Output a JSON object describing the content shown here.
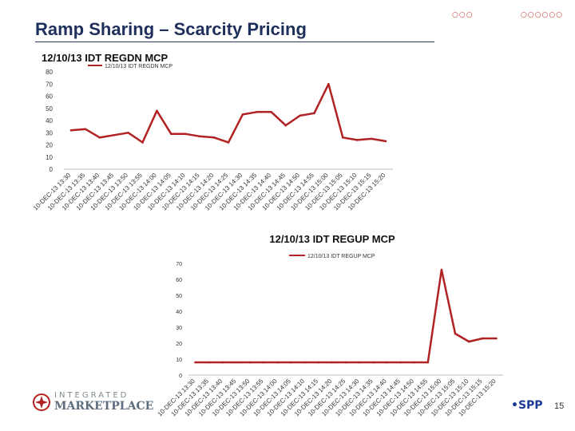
{
  "slide": {
    "title": "Ramp Sharing – Scarcity Pricing",
    "page_number": "15",
    "logo_upper": "INTEGRATED",
    "logo_lower": "MARKETPLACE",
    "spp_logo": "•SPP",
    "accent_color": "#b22222",
    "title_color": "#1f2f5c"
  },
  "chart_data": [
    {
      "type": "line",
      "title": "12/10/13 IDT REGDN MCP",
      "legend": "12/10/13 IDT REGDN MCP",
      "legend_position": "top-left",
      "color": "#b22222",
      "ylim": [
        0,
        80
      ],
      "yticks": [
        0,
        10,
        20,
        30,
        40,
        50,
        60,
        70,
        80
      ],
      "categories": [
        "10-DEC-13 13:30",
        "10-DEC-13 13:35",
        "10-DEC-13 13:40",
        "10-DEC-13 13:45",
        "10-DEC-13 13:50",
        "10-DEC-13 13:55",
        "10-DEC-13 14:00",
        "10-DEC-13 14:05",
        "10-DEC-13 14:10",
        "10-DEC-13 14:15",
        "10-DEC-13 14:20",
        "10-DEC-13 14:25",
        "10-DEC-13 14:30",
        "10-DEC-13 14:35",
        "10-DEC-13 14:40",
        "10-DEC-13 14:45",
        "10-DEC-13 14:50",
        "10-DEC-13 14:55",
        "10-DEC-13 15:00",
        "10-DEC-13 15:05",
        "10-DEC-13 15:10",
        "10-DEC-13 15:15",
        "10-DEC-13 15:20"
      ],
      "values": [
        32,
        33,
        26,
        28,
        30,
        22,
        48,
        29,
        29,
        27,
        26,
        22,
        45,
        47,
        47,
        36,
        44,
        46,
        70,
        26,
        24,
        25,
        23
      ]
    },
    {
      "type": "line",
      "title": "12/10/13 IDT REGUP MCP",
      "legend": "12/10/13 IDT REGUP MCP",
      "legend_position": "top-center",
      "color": "#b22222",
      "ylim": [
        0,
        70
      ],
      "yticks": [
        0,
        10,
        20,
        30,
        40,
        50,
        60,
        70
      ],
      "categories": [
        "10-DEC-13 13:30",
        "10-DEC-13 13:35",
        "10-DEC-13 13:40",
        "10-DEC-13 13:45",
        "10-DEC-13 13:50",
        "10-DEC-13 13:55",
        "10-DEC-13 14:00",
        "10-DEC-13 14:05",
        "10-DEC-13 14:10",
        "10-DEC-13 14:15",
        "10-DEC-13 14:20",
        "10-DEC-13 14:25",
        "10-DEC-13 14:30",
        "10-DEC-13 14:35",
        "10-DEC-13 14:40",
        "10-DEC-13 14:45",
        "10-DEC-13 14:50",
        "10-DEC-13 14:55",
        "10-DEC-13 15:00",
        "10-DEC-13 15:05",
        "10-DEC-13 15:10",
        "10-DEC-13 15:15",
        "10-DEC-13 15:20"
      ],
      "values": [
        8,
        8,
        8,
        8,
        8,
        8,
        8,
        8,
        8,
        8,
        8,
        8,
        8,
        8,
        8,
        8,
        8,
        8,
        66,
        26,
        21,
        23,
        23
      ]
    }
  ]
}
